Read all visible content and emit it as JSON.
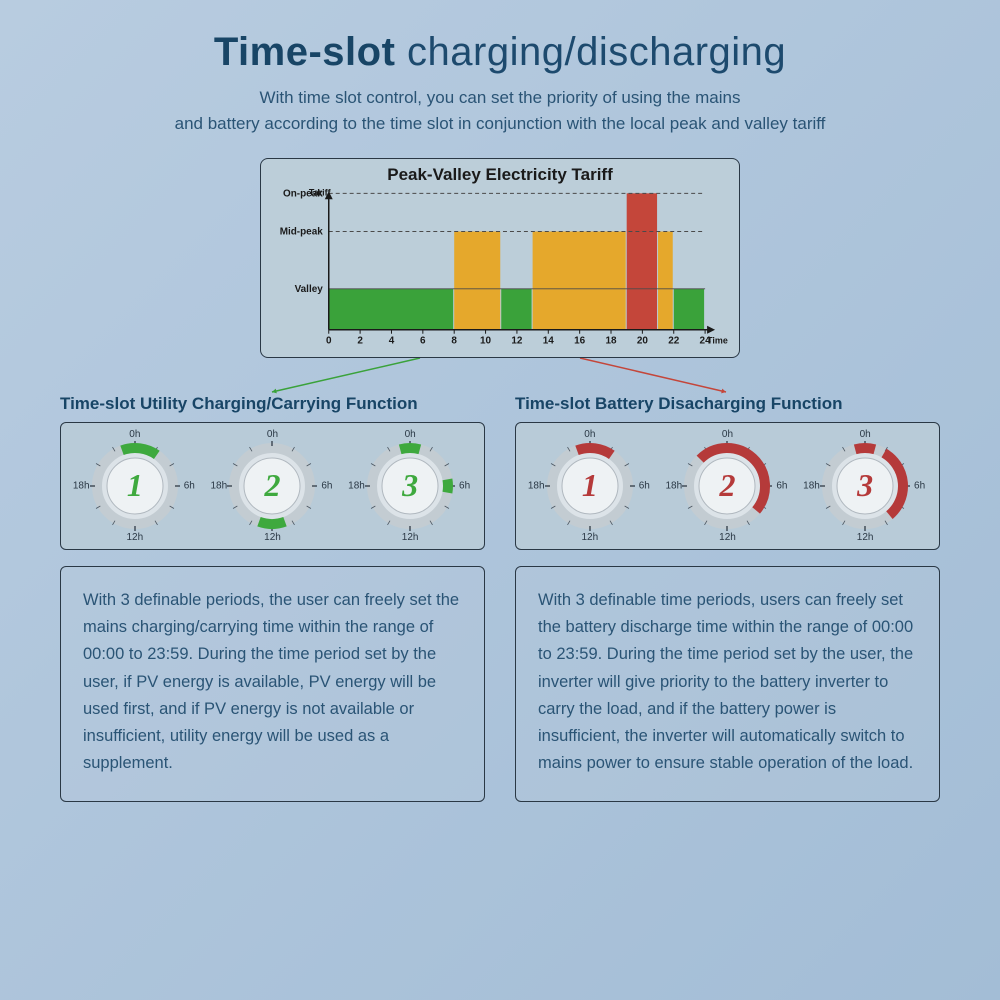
{
  "header": {
    "title_bold": "Time-slot",
    "title_light": " charging/discharging",
    "subtitle_line1": "With time slot control, you can set the priority of using the mains",
    "subtitle_line2": "and battery according to the time slot in conjunction with the local peak and valley tariff"
  },
  "chart": {
    "title": "Peak-Valley Electricity Tariff",
    "y_label": "Tariff",
    "x_label": "Time",
    "y_ticks": [
      "On-peak",
      "Mid-peak",
      "Valley"
    ],
    "x_ticks": [
      "0",
      "2",
      "4",
      "6",
      "8",
      "10",
      "12",
      "14",
      "16",
      "18",
      "20",
      "22",
      "24"
    ],
    "x_domain": [
      0,
      24
    ],
    "levels": {
      "valley": 30,
      "mid": 72,
      "on": 100
    },
    "bars": [
      {
        "start": 0,
        "end": 8,
        "level": "valley",
        "color": "#3aa23a"
      },
      {
        "start": 8,
        "end": 11,
        "level": "mid",
        "color": "#e5a82c"
      },
      {
        "start": 11,
        "end": 13,
        "level": "valley",
        "color": "#3aa23a"
      },
      {
        "start": 13,
        "end": 19,
        "level": "mid",
        "color": "#e5a82c"
      },
      {
        "start": 19,
        "end": 21,
        "level": "on",
        "color": "#c4463a"
      },
      {
        "start": 21,
        "end": 22,
        "level": "mid",
        "color": "#e5a82c"
      },
      {
        "start": 22,
        "end": 24,
        "level": "valley",
        "color": "#3aa23a"
      }
    ],
    "grid_color": "#4a4a4a",
    "bg": "#bcced9"
  },
  "connectors": {
    "left_color": "#3aa23a",
    "right_color": "#c4463a"
  },
  "columns": {
    "left": {
      "title": "Time-slot Utility Charging/Carrying Function",
      "color": "#3ea93e",
      "gauges": [
        {
          "num": "1",
          "arcs": [
            [
              -20,
              35
            ]
          ],
          "tick_labels": [
            "0h",
            "6h",
            "12h",
            "18h"
          ]
        },
        {
          "num": "2",
          "arcs": [
            [
              160,
              200
            ]
          ],
          "tick_labels": [
            "0h",
            "6h",
            "12h",
            "18h"
          ]
        },
        {
          "num": "3",
          "arcs": [
            [
              -15,
              15
            ],
            [
              80,
              100
            ]
          ],
          "tick_labels": [
            "0h",
            "6h",
            "12h",
            "18h"
          ]
        }
      ],
      "desc": "With 3 definable periods, the user can freely set the mains charging/carrying time within the range of 00:00 to 23:59. During the time period set by the user, if PV energy is available, PV energy will be used first, and if PV energy is not available or insufficient, utility energy will be used as a supplement."
    },
    "right": {
      "title": "Time-slot Battery Disacharging Function",
      "color": "#b53a3a",
      "gauges": [
        {
          "num": "1",
          "arcs": [
            [
              -20,
              35
            ]
          ],
          "tick_labels": [
            "0h",
            "6h",
            "12h",
            "18h"
          ]
        },
        {
          "num": "2",
          "arcs": [
            [
              -45,
              130
            ]
          ],
          "tick_labels": [
            "0h",
            "6h",
            "12h",
            "18h"
          ]
        },
        {
          "num": "3",
          "arcs": [
            [
              -15,
              15
            ],
            [
              30,
              140
            ]
          ],
          "tick_labels": [
            "0h",
            "6h",
            "12h",
            "18h"
          ]
        }
      ],
      "desc": "With 3 definable time periods, users can freely set the battery discharge time within the range of 00:00 to 23:59. During the time period set by the user, the inverter will give priority to the battery inverter to carry the load, and if the battery power is insufficient, the inverter will automatically switch to mains power to ensure stable operation of the load."
    }
  }
}
